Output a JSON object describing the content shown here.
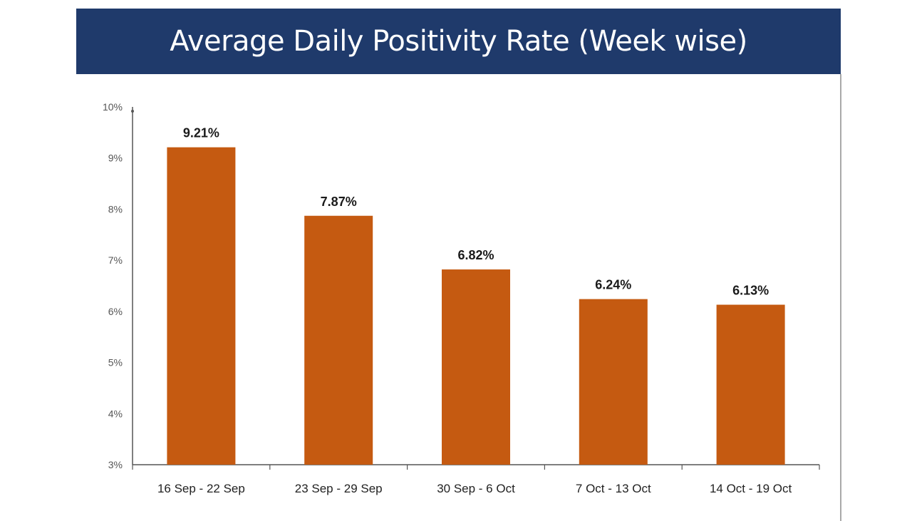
{
  "chart_data": {
    "type": "bar",
    "title": "Average Daily Positivity Rate (Week wise)",
    "xlabel": "",
    "ylabel": "",
    "categories": [
      "16 Sep - 22 Sep",
      "23 Sep - 29 Sep",
      "30 Sep - 6 Oct",
      "7 Oct - 13 Oct",
      "14 Oct - 19 Oct"
    ],
    "values": [
      9.21,
      7.87,
      6.82,
      6.24,
      6.13
    ],
    "data_labels": [
      "9.21%",
      "7.87%",
      "6.82%",
      "6.24%",
      "6.13%"
    ],
    "ylim": [
      3,
      10
    ],
    "yticks": [
      3,
      4,
      5,
      6,
      7,
      8,
      9,
      10
    ],
    "ytick_labels": [
      "3%",
      "4%",
      "5%",
      "6%",
      "7%",
      "8%",
      "9%",
      "10%"
    ],
    "grid": false,
    "legend": "none",
    "colors": {
      "bar": "#c55a11",
      "title_background": "#1f3a6b",
      "title_text": "#ffffff",
      "axis": "#555555"
    }
  }
}
